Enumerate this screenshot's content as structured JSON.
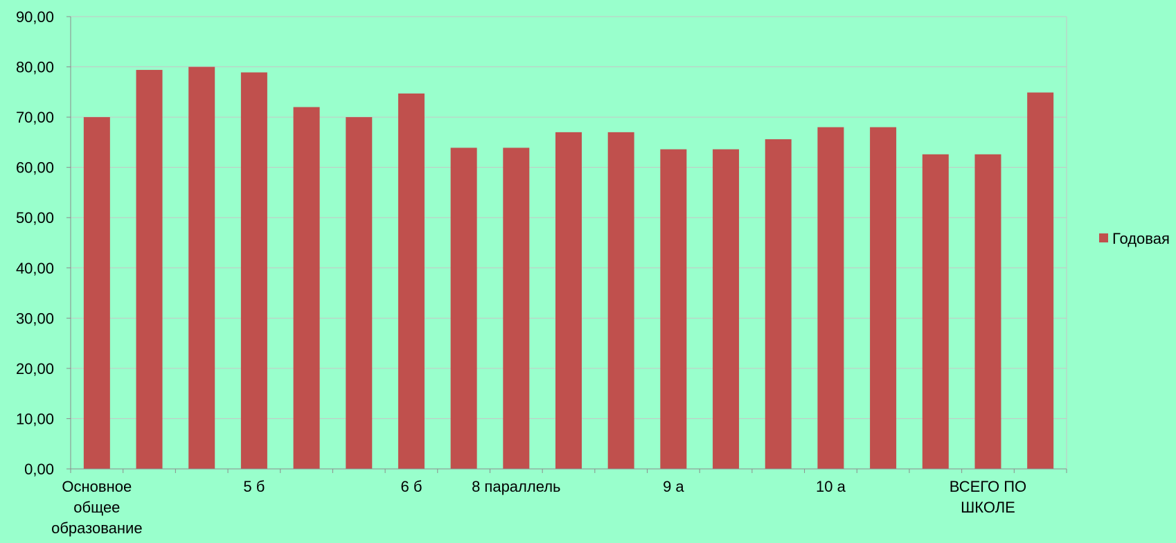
{
  "chart_data": {
    "type": "bar",
    "categories": [
      "Основное общее образование",
      "",
      "",
      "5 б",
      "",
      "",
      "6 б",
      "",
      "8 параллель",
      "",
      "",
      "9 а",
      "",
      "",
      "10 а",
      "",
      "",
      "ВСЕГО ПО ШКОЛЕ",
      ""
    ],
    "category_label_lines": [
      [
        "Основное",
        "общее",
        "образование"
      ],
      [],
      [],
      [
        "5 б"
      ],
      [],
      [],
      [
        "6 б"
      ],
      [],
      [
        "8 параллель"
      ],
      [],
      [],
      [
        "9 а"
      ],
      [],
      [],
      [
        "10 а"
      ],
      [],
      [],
      [
        "ВСЕГО ПО",
        "ШКОЛЕ"
      ],
      []
    ],
    "series": [
      {
        "name": "Годовая",
        "color": "#c0504d",
        "values": [
          70.0,
          79.4,
          80.0,
          78.9,
          72.0,
          70.0,
          74.7,
          63.9,
          63.9,
          67.0,
          67.0,
          63.6,
          63.6,
          65.6,
          68.0,
          68.0,
          62.6,
          62.6,
          74.9
        ]
      }
    ],
    "ylim": [
      0,
      90
    ],
    "yticks": [
      "0,00",
      "10,00",
      "20,00",
      "30,00",
      "40,00",
      "50,00",
      "60,00",
      "70,00",
      "80,00",
      "90,00"
    ],
    "ytick_values": [
      0,
      10,
      20,
      30,
      40,
      50,
      60,
      70,
      80,
      90
    ],
    "grid": true,
    "legend_position": "right",
    "title": "",
    "xlabel": "",
    "ylabel": ""
  },
  "colors": {
    "background": "#99ffcc",
    "gridline": "#c6c6c6",
    "axis": "#8c8c8c",
    "bar": "#c0504d"
  }
}
